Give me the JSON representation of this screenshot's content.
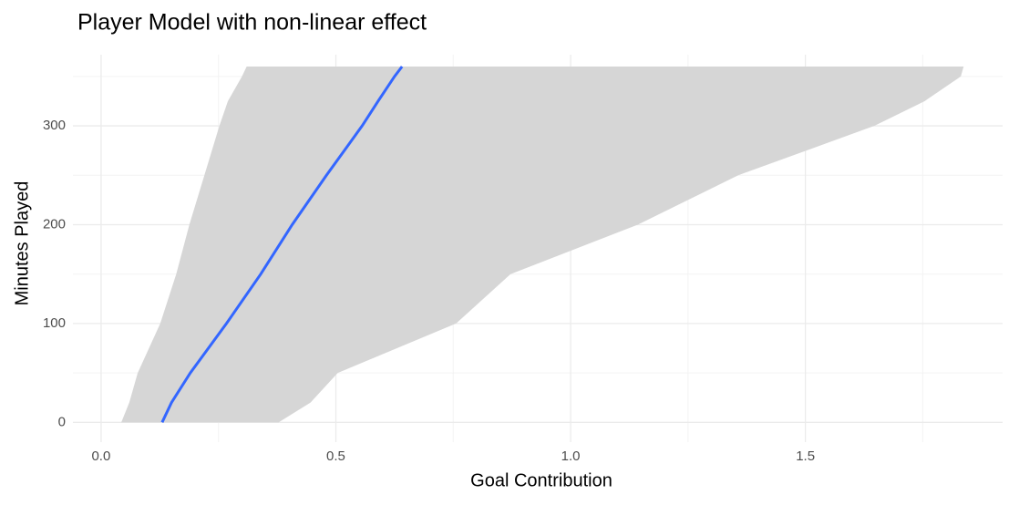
{
  "chart_data": {
    "type": "ribbon",
    "title": "Player Model with non-linear effect",
    "x_label": "Goal Contribution",
    "y_label": "Minutes Played",
    "minutes": [
      0,
      20,
      50,
      100,
      150,
      200,
      250,
      300,
      325,
      350,
      360
    ],
    "fit": [
      0.13,
      0.15,
      0.19,
      0.267,
      0.34,
      0.407,
      0.48,
      0.556,
      0.59,
      0.625,
      0.641
    ],
    "lower": [
      0.043,
      0.06,
      0.078,
      0.126,
      0.16,
      0.188,
      0.22,
      0.252,
      0.27,
      0.3,
      0.31
    ],
    "upper": [
      0.378,
      0.446,
      0.504,
      0.756,
      0.872,
      1.143,
      1.357,
      1.647,
      1.754,
      1.831,
      1.837
    ],
    "fit_color": "#3366ff",
    "ribbon_color": "#d6d6d6",
    "xlim": [
      -0.06,
      1.92
    ],
    "ylim": [
      -20,
      372
    ],
    "xticks": [
      {
        "value": 0,
        "label": "0.0"
      },
      0.5,
      {
        "value": 1,
        "label": "1.0"
      },
      1.5
    ],
    "yticks": [
      0,
      100,
      200,
      300
    ],
    "x_minor_ticks": [
      0.25,
      0.75,
      1.25,
      1.75
    ],
    "y_minor_ticks": [
      50,
      150,
      250,
      350
    ],
    "grid": true
  }
}
